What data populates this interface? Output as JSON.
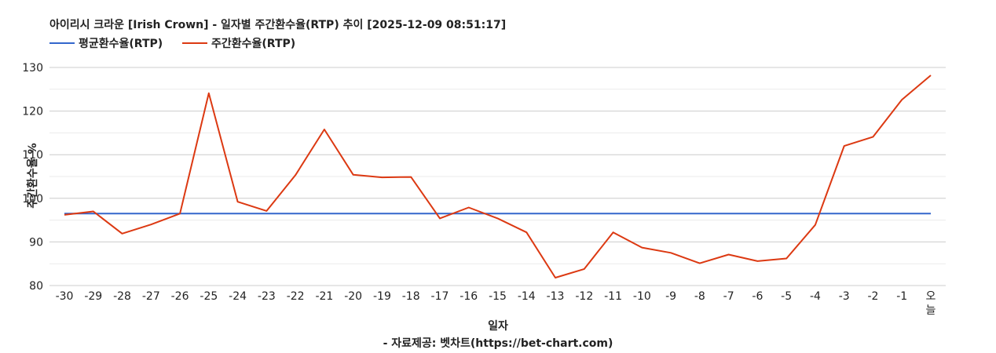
{
  "chart_data": {
    "type": "line",
    "title": "아이리시 크라운 [Irish Crown] - 일자별 주간환수율(RTP) 추이 [2025-12-09 08:51:17]",
    "xlabel": "일자",
    "source": "- 자료제공: 벳차트(https://bet-chart.com)",
    "ylabel": "주간환수율 %",
    "ylim": [
      80,
      130
    ],
    "yticks": [
      "80",
      "90",
      "100",
      "110",
      "120",
      "130"
    ],
    "categories": [
      "-30",
      "-29",
      "-28",
      "-27",
      "-26",
      "-25",
      "-24",
      "-23",
      "-22",
      "-21",
      "-20",
      "-19",
      "-18",
      "-17",
      "-16",
      "-15",
      "-14",
      "-13",
      "-12",
      "-11",
      "-10",
      "-9",
      "-8",
      "-7",
      "-6",
      "-5",
      "-4",
      "-3",
      "-2",
      "-1",
      "오늘"
    ],
    "grid": true,
    "legend_position": "top-left",
    "series": [
      {
        "name": "평균환수율(RTP)",
        "color": "#3366cc",
        "values": [
          96.5,
          96.5,
          96.5,
          96.5,
          96.5,
          96.5,
          96.5,
          96.5,
          96.5,
          96.5,
          96.5,
          96.5,
          96.5,
          96.5,
          96.5,
          96.5,
          96.5,
          96.5,
          96.5,
          96.5,
          96.5,
          96.5,
          96.5,
          96.5,
          96.5,
          96.5,
          96.5,
          96.5,
          96.5,
          96.5,
          96.5
        ]
      },
      {
        "name": "주간환수율(RTP)",
        "color": "#dc3912",
        "values": [
          96.2,
          97.0,
          91.9,
          94.0,
          96.5,
          124.1,
          99.2,
          97.1,
          105.3,
          115.8,
          105.4,
          104.8,
          104.9,
          95.4,
          97.9,
          95.4,
          92.2,
          81.8,
          83.8,
          92.2,
          88.7,
          87.5,
          85.1,
          87.1,
          85.6,
          86.2,
          93.9,
          112.0,
          114.1,
          122.6,
          128.2
        ]
      }
    ]
  }
}
